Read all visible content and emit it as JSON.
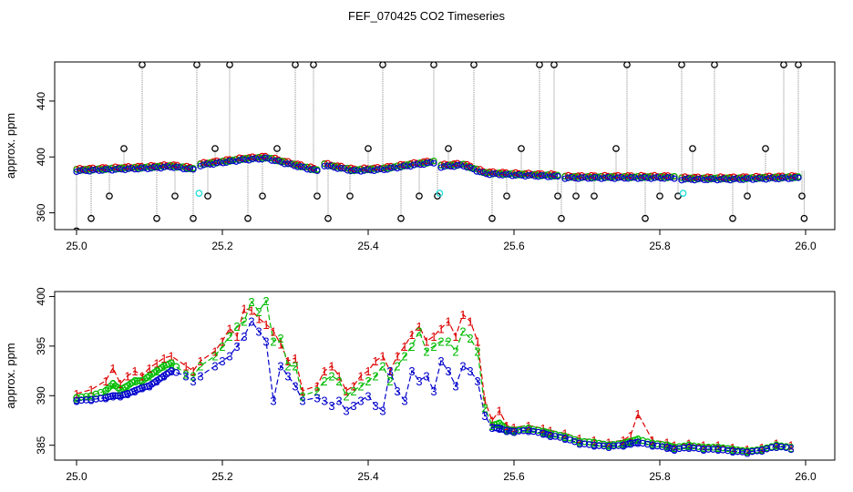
{
  "title": "FEF_070425  CO2 Timeseries",
  "colors": {
    "series1": "#dd0000",
    "series2": "#00bb00",
    "series3": "#0000cc",
    "spike": "#000000",
    "cyan": "#22dddd",
    "connector": "#888888"
  },
  "chart_data": [
    {
      "type": "scatter",
      "title": "",
      "xlabel": "",
      "ylabel": "approx. ppm",
      "xlim": [
        24.97,
        26.04
      ],
      "ylim": [
        348,
        468
      ],
      "xticks": [
        25.0,
        25.2,
        25.4,
        25.6,
        25.8,
        26.0
      ],
      "xtick_labels": [
        "25.0",
        "25.2",
        "25.4",
        "25.6",
        "25.8",
        "26.0"
      ],
      "yticks": [
        360,
        400,
        440
      ],
      "ytick_labels": [
        "360",
        "400",
        "440"
      ],
      "baseline_segments": [
        {
          "x": [
            25.0,
            25.05,
            25.1,
            25.13,
            25.16
          ],
          "y": [
            390,
            391,
            392,
            393,
            391
          ]
        },
        {
          "x": [
            25.17,
            25.2,
            25.23,
            25.26,
            25.29,
            25.33
          ],
          "y": [
            394,
            396,
            398,
            399,
            395,
            390
          ]
        },
        {
          "x": [
            25.34,
            25.38,
            25.42,
            25.46,
            25.49
          ],
          "y": [
            394,
            390,
            391,
            394,
            396
          ]
        },
        {
          "x": [
            25.5,
            25.53,
            25.56,
            25.6,
            25.66
          ],
          "y": [
            393,
            394,
            388,
            387,
            386
          ]
        },
        {
          "x": [
            25.67,
            25.74,
            25.82
          ],
          "y": [
            385,
            385,
            385
          ]
        },
        {
          "x": [
            25.83,
            25.9,
            25.99
          ],
          "y": [
            384,
            384,
            385
          ]
        }
      ],
      "spike_points": {
        "x": [
          25.0,
          25.02,
          25.045,
          25.065,
          25.09,
          25.11,
          25.135,
          25.16,
          25.165,
          25.18,
          25.19,
          25.21,
          25.235,
          25.255,
          25.275,
          25.3,
          25.325,
          25.33,
          25.345,
          25.375,
          25.4,
          25.42,
          25.445,
          25.47,
          25.49,
          25.495,
          25.51,
          25.545,
          25.57,
          25.59,
          25.61,
          25.635,
          25.655,
          25.66,
          25.665,
          25.685,
          25.71,
          25.74,
          25.755,
          25.78,
          25.8,
          25.825,
          25.83,
          25.845,
          25.875,
          25.9,
          25.92,
          25.945,
          25.97,
          25.99,
          25.995,
          25.998
        ],
        "y": [
          347,
          356,
          372,
          406,
          466,
          356,
          372,
          356,
          466,
          372,
          406,
          466,
          356,
          372,
          406,
          466,
          466,
          372,
          356,
          372,
          406,
          466,
          356,
          372,
          466,
          372,
          406,
          466,
          356,
          372,
          406,
          466,
          466,
          372,
          356,
          372,
          372,
          406,
          466,
          356,
          372,
          372,
          466,
          406,
          466,
          356,
          372,
          406,
          466,
          466,
          372,
          356
        ]
      },
      "cyan_points": {
        "x": [
          25.168,
          25.498,
          25.832
        ],
        "y": [
          374,
          374,
          374
        ]
      }
    },
    {
      "type": "line",
      "title": "",
      "xlabel": "",
      "ylabel": "approx. ppm",
      "xlim": [
        24.97,
        26.04
      ],
      "ylim": [
        383.5,
        400.5
      ],
      "xticks": [
        25.0,
        25.2,
        25.4,
        25.6,
        25.8,
        26.0
      ],
      "xtick_labels": [
        "25.0",
        "25.2",
        "25.4",
        "25.6",
        "25.8",
        "26.0"
      ],
      "yticks": [
        385,
        390,
        395,
        400
      ],
      "ytick_labels": [
        "385",
        "390",
        "395",
        "400"
      ],
      "series": [
        {
          "name": "1",
          "label": "1",
          "x": [
            25.0,
            25.02,
            25.04,
            25.05,
            25.06,
            25.07,
            25.08,
            25.09,
            25.1,
            25.11,
            25.12,
            25.13,
            25.15,
            25.16,
            25.17,
            25.19,
            25.2,
            25.21,
            25.22,
            25.23,
            25.24,
            25.25,
            25.26,
            25.27,
            25.28,
            25.29,
            25.3,
            25.31,
            25.33,
            25.34,
            25.35,
            25.36,
            25.37,
            25.38,
            25.39,
            25.4,
            25.41,
            25.42,
            25.43,
            25.44,
            25.45,
            25.46,
            25.47,
            25.48,
            25.49,
            25.5,
            25.51,
            25.52,
            25.53,
            25.54,
            25.55,
            25.56,
            25.57,
            25.58,
            25.59,
            25.6,
            25.62,
            25.64,
            25.65,
            25.67,
            25.69,
            25.71,
            25.73,
            25.75,
            25.76,
            25.77,
            25.79,
            25.81,
            25.82,
            25.84,
            25.86,
            25.88,
            25.9,
            25.92,
            25.94,
            25.96,
            25.98
          ],
          "y": [
            390.2,
            390.6,
            391.5,
            392.8,
            391.2,
            392.0,
            392.5,
            392.0,
            392.8,
            393.3,
            393.8,
            394.0,
            393.0,
            392.5,
            393.5,
            394.5,
            395.5,
            396.8,
            396.0,
            398.8,
            398.6,
            397.8,
            397.2,
            396.5,
            395.2,
            393.5,
            393.8,
            390.5,
            391.0,
            392.5,
            393.0,
            392.0,
            390.5,
            391.0,
            392.0,
            392.5,
            393.5,
            394.0,
            392.5,
            394.0,
            395.0,
            396.2,
            397.0,
            395.5,
            396.0,
            396.8,
            397.5,
            396.0,
            398.2,
            397.5,
            395.5,
            389.5,
            387.5,
            388.5,
            387.0,
            386.8,
            387.0,
            386.7,
            386.5,
            386.2,
            385.7,
            385.5,
            385.3,
            385.5,
            386.0,
            388.2,
            385.5,
            385.3,
            385.0,
            385.2,
            385.0,
            385.0,
            384.8,
            384.6,
            384.8,
            385.2,
            385.0
          ]
        },
        {
          "name": "2",
          "label": "2",
          "x": [
            25.0,
            25.02,
            25.04,
            25.05,
            25.06,
            25.07,
            25.08,
            25.09,
            25.1,
            25.11,
            25.12,
            25.13,
            25.15,
            25.16,
            25.17,
            25.19,
            25.2,
            25.21,
            25.22,
            25.23,
            25.24,
            25.25,
            25.26,
            25.27,
            25.28,
            25.29,
            25.3,
            25.31,
            25.33,
            25.34,
            25.35,
            25.36,
            25.37,
            25.38,
            25.39,
            25.4,
            25.41,
            25.42,
            25.43,
            25.44,
            25.45,
            25.46,
            25.47,
            25.48,
            25.49,
            25.5,
            25.51,
            25.52,
            25.53,
            25.54,
            25.55,
            25.56,
            25.57,
            25.58,
            25.59,
            25.6,
            25.62,
            25.64,
            25.65,
            25.67,
            25.69,
            25.71,
            25.73,
            25.75,
            25.76,
            25.77,
            25.79,
            25.81,
            25.82,
            25.84,
            25.86,
            25.88,
            25.9,
            25.92,
            25.94,
            25.96,
            25.98
          ],
          "y": [
            389.8,
            390.0,
            390.5,
            391.2,
            390.6,
            391.0,
            391.5,
            391.5,
            392.0,
            392.5,
            393.0,
            393.3,
            392.2,
            392.0,
            393.0,
            394.0,
            395.0,
            396.0,
            397.0,
            397.5,
            399.5,
            398.5,
            399.6,
            395.5,
            395.8,
            393.0,
            393.0,
            390.0,
            390.5,
            391.5,
            392.0,
            391.5,
            390.0,
            390.5,
            391.0,
            391.5,
            392.0,
            393.0,
            391.5,
            393.0,
            394.0,
            395.0,
            396.5,
            394.5,
            395.0,
            395.5,
            395.5,
            394.5,
            396.5,
            395.8,
            394.5,
            388.8,
            387.0,
            387.2,
            386.6,
            386.5,
            386.7,
            386.4,
            386.2,
            385.9,
            385.4,
            385.3,
            385.0,
            385.2,
            385.4,
            385.6,
            385.2,
            385.0,
            384.8,
            385.0,
            384.8,
            384.8,
            384.6,
            384.4,
            384.6,
            385.0,
            384.8
          ]
        },
        {
          "name": "3",
          "label": "3",
          "x": [
            25.0,
            25.02,
            25.04,
            25.05,
            25.06,
            25.07,
            25.08,
            25.09,
            25.1,
            25.11,
            25.12,
            25.13,
            25.15,
            25.16,
            25.17,
            25.19,
            25.2,
            25.21,
            25.22,
            25.23,
            25.24,
            25.25,
            25.26,
            25.27,
            25.28,
            25.29,
            25.3,
            25.31,
            25.33,
            25.34,
            25.35,
            25.36,
            25.37,
            25.38,
            25.39,
            25.4,
            25.41,
            25.42,
            25.43,
            25.44,
            25.45,
            25.46,
            25.47,
            25.48,
            25.49,
            25.5,
            25.51,
            25.52,
            25.53,
            25.54,
            25.55,
            25.56,
            25.57,
            25.58,
            25.59,
            25.6,
            25.62,
            25.64,
            25.65,
            25.67,
            25.69,
            25.71,
            25.73,
            25.75,
            25.76,
            25.77,
            25.79,
            25.81,
            25.82,
            25.84,
            25.86,
            25.88,
            25.9,
            25.92,
            25.94,
            25.96,
            25.98
          ],
          "y": [
            389.5,
            389.6,
            389.8,
            390.0,
            390.0,
            390.2,
            390.5,
            390.8,
            391.0,
            391.5,
            392.0,
            392.5,
            392.0,
            391.5,
            392.0,
            393.0,
            393.5,
            394.0,
            395.0,
            396.0,
            397.5,
            396.5,
            395.5,
            389.5,
            393.0,
            392.0,
            391.0,
            389.5,
            389.8,
            389.5,
            389.0,
            389.5,
            388.5,
            389.0,
            389.5,
            390.0,
            389.0,
            388.5,
            392.5,
            390.5,
            389.5,
            392.5,
            391.5,
            392.0,
            390.5,
            393.5,
            392.5,
            391.0,
            393.0,
            392.5,
            391.5,
            388.0,
            386.8,
            386.7,
            386.5,
            386.4,
            386.5,
            386.2,
            386.0,
            385.7,
            385.2,
            385.0,
            384.9,
            385.0,
            385.2,
            385.3,
            385.0,
            384.8,
            384.6,
            384.8,
            384.6,
            384.6,
            384.4,
            384.3,
            384.5,
            384.9,
            384.7
          ]
        }
      ]
    }
  ]
}
